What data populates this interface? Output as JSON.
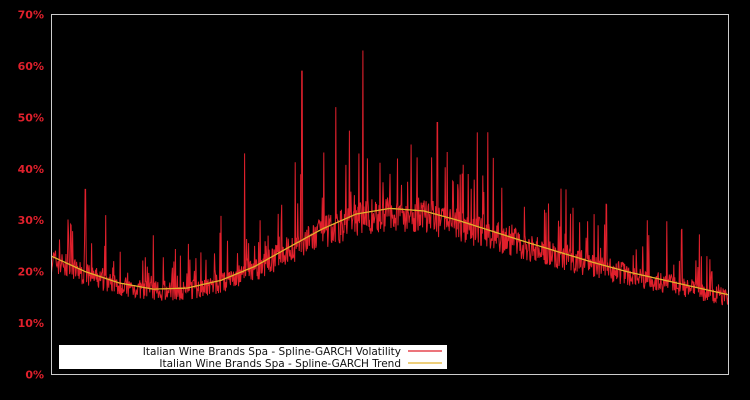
{
  "chart_data": {
    "type": "line",
    "title": "",
    "xlabel": "",
    "ylabel": "",
    "ylim": [
      0,
      70
    ],
    "y_ticks": [
      "0%",
      "10%",
      "20%",
      "30%",
      "40%",
      "50%",
      "60%",
      "70%"
    ],
    "y_tick_values": [
      0,
      10,
      20,
      30,
      40,
      50,
      60,
      70
    ],
    "grid": false,
    "background": "#000000",
    "frame_color": "#cccccc",
    "tick_label_color": "#e0202c",
    "legend_position": "lower left",
    "series": [
      {
        "name": "Italian Wine Brands Spa - Spline-GARCH Volatility",
        "color": "#e0202c",
        "x_frac": [
          0.0,
          0.02,
          0.04,
          0.05,
          0.053,
          0.06,
          0.08,
          0.1,
          0.12,
          0.14,
          0.16,
          0.18,
          0.2,
          0.22,
          0.24,
          0.26,
          0.28,
          0.285,
          0.3,
          0.32,
          0.34,
          0.36,
          0.37,
          0.38,
          0.4,
          0.42,
          0.44,
          0.46,
          0.465,
          0.48,
          0.5,
          0.52,
          0.54,
          0.56,
          0.57,
          0.58,
          0.6,
          0.62,
          0.64,
          0.66,
          0.68,
          0.7,
          0.72,
          0.74,
          0.76,
          0.78,
          0.8,
          0.82,
          0.84,
          0.86,
          0.88,
          0.9,
          0.92,
          0.94,
          0.96,
          0.98,
          1.0
        ],
        "values": [
          25,
          20,
          19,
          36,
          19,
          16,
          31,
          18,
          16,
          15,
          15,
          17,
          16,
          17,
          20,
          26,
          22,
          43,
          25,
          27,
          33,
          29,
          59,
          30,
          31,
          52,
          33,
          63,
          36,
          30,
          39,
          31,
          35,
          32,
          49,
          28,
          37,
          30,
          26,
          24,
          26,
          28,
          24,
          21,
          36,
          22,
          22,
          33,
          21,
          20,
          30,
          19,
          20,
          18,
          23,
          16,
          14
        ]
      },
      {
        "name": "Italian Wine Brands Spa - Spline-GARCH Trend",
        "color": "#e3b22c",
        "x_frac": [
          0.0,
          0.05,
          0.1,
          0.15,
          0.2,
          0.25,
          0.3,
          0.35,
          0.4,
          0.45,
          0.5,
          0.55,
          0.6,
          0.65,
          0.7,
          0.75,
          0.8,
          0.85,
          0.9,
          0.95,
          1.0
        ],
        "values": [
          23.0,
          20.0,
          17.8,
          16.6,
          16.8,
          18.3,
          21.0,
          24.7,
          28.3,
          31.2,
          32.3,
          31.8,
          30.0,
          27.9,
          25.8,
          23.8,
          21.8,
          20.0,
          18.5,
          17.0,
          15.5
        ]
      }
    ]
  },
  "legend": {
    "items": [
      {
        "label": "Italian Wine Brands Spa - Spline-GARCH Volatility",
        "color": "#e0202c"
      },
      {
        "label": "Italian Wine Brands Spa - Spline-GARCH Trend",
        "color": "#e3b22c"
      }
    ]
  }
}
